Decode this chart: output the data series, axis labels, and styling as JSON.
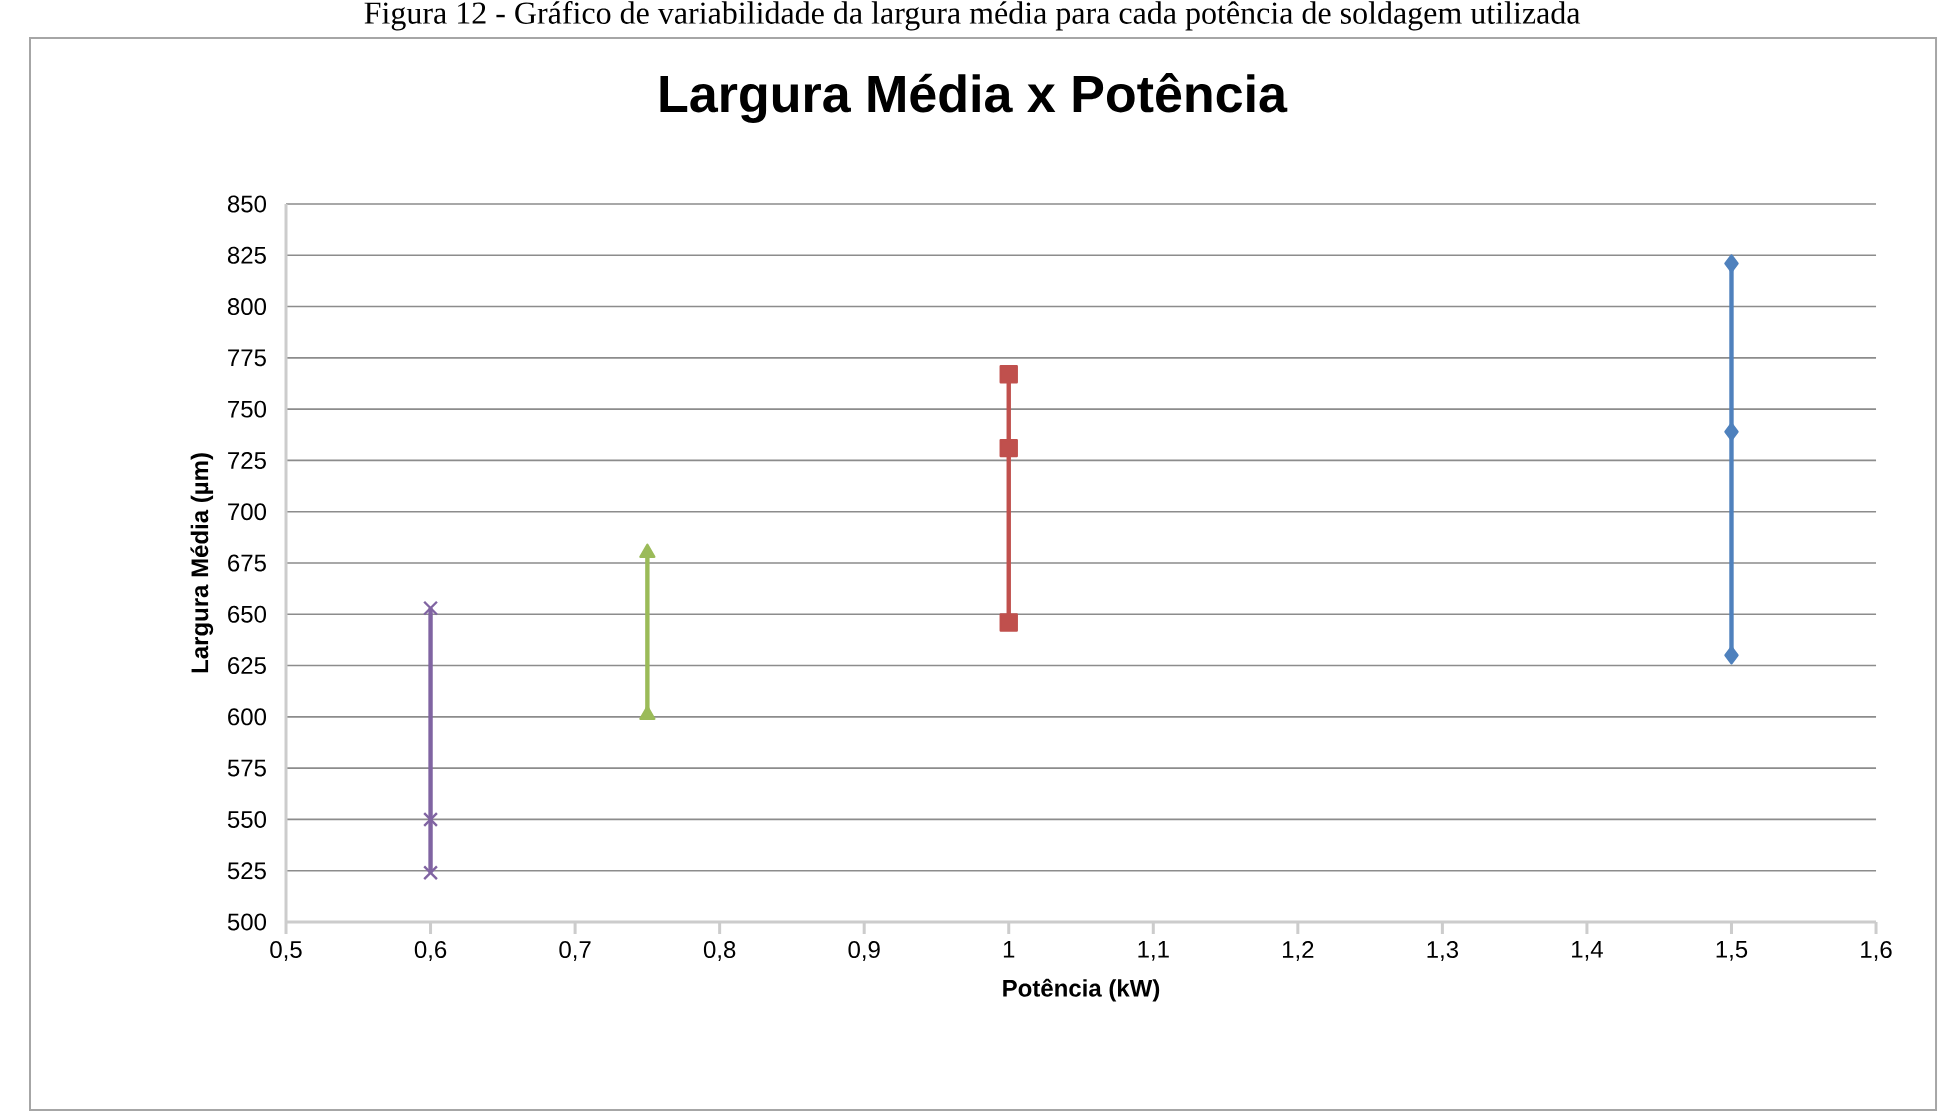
{
  "chart_data": {
    "type": "line",
    "title": "Largura Média x Potência",
    "xlabel": "Potência (kW)",
    "ylabel": "Largura Média (µm)",
    "annotations": [
      "Figura 12 - Gráfico de variabilidade da largura média para cada potência de soldagem utilizada"
    ],
    "series": [
      {
        "color": "#8064a2",
        "marker": "cross",
        "x": [
          0.6,
          0.6,
          0.6
        ],
        "values": [
          653,
          550,
          524
        ]
      },
      {
        "color": "#9bbb59",
        "marker": "triangle",
        "x": [
          0.75,
          0.75
        ],
        "values": [
          680,
          601
        ]
      },
      {
        "color": "#c0504d",
        "marker": "square",
        "x": [
          1.0,
          1.0,
          1.0
        ],
        "values": [
          767,
          731,
          646
        ]
      },
      {
        "color": "#4f81bd",
        "marker": "diamond",
        "x": [
          1.5,
          1.5,
          1.5
        ],
        "values": [
          821,
          739,
          630
        ]
      }
    ],
    "xlim": [
      0.5,
      1.6
    ],
    "xticks": [
      {
        "value": 0.5,
        "label": "0,5"
      },
      {
        "value": 0.6,
        "label": "0,6"
      },
      {
        "value": 0.7,
        "label": "0,7"
      },
      {
        "value": 0.8,
        "label": "0,8"
      },
      {
        "value": 0.9,
        "label": "0,9"
      },
      {
        "value": 1.0,
        "label": "1"
      },
      {
        "value": 1.1,
        "label": "1,1"
      },
      {
        "value": 1.2,
        "label": "1,2"
      },
      {
        "value": 1.3,
        "label": "1,3"
      },
      {
        "value": 1.4,
        "label": "1,4"
      },
      {
        "value": 1.5,
        "label": "1,5"
      },
      {
        "value": 1.6,
        "label": "1,6"
      }
    ],
    "ylim": [
      500,
      850
    ],
    "yticks": [
      500,
      525,
      550,
      575,
      600,
      625,
      650,
      675,
      700,
      725,
      750,
      775,
      800,
      825,
      850
    ],
    "grid": "y",
    "line_style": "solid"
  }
}
